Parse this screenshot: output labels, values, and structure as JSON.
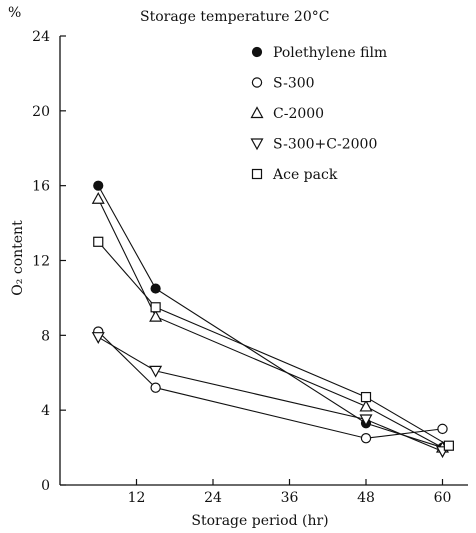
{
  "chart_data": {
    "type": "line",
    "title": "Storage temperature 20°C",
    "xlabel": "Storage period (hr)",
    "ylabel": "O₂ content",
    "y_unit": "%",
    "xlim": [
      0,
      64
    ],
    "ylim": [
      0,
      24
    ],
    "x_ticks": [
      "12",
      "24",
      "36",
      "48",
      "60"
    ],
    "y_ticks": [
      "0",
      "4",
      "8",
      "12",
      "16",
      "20",
      "24"
    ],
    "grid": false,
    "legend_position": "top-right",
    "series": [
      {
        "name": "Polethylene film",
        "marker": "filled-circle",
        "x": [
          6,
          15,
          48,
          60
        ],
        "y": [
          16.0,
          10.5,
          3.3,
          2.0
        ]
      },
      {
        "name": "S-300",
        "marker": "open-circle",
        "x": [
          6,
          15,
          48,
          60
        ],
        "y": [
          8.2,
          5.2,
          2.5,
          3.0
        ]
      },
      {
        "name": "C-2000",
        "marker": "open-triangle-up",
        "x": [
          6,
          15,
          48,
          60
        ],
        "y": [
          15.3,
          9.0,
          4.2,
          2.0
        ]
      },
      {
        "name": "S-300+C-2000",
        "marker": "open-triangle-down",
        "x": [
          6,
          15,
          48,
          60
        ],
        "y": [
          7.9,
          6.1,
          3.5,
          1.8
        ]
      },
      {
        "name": "Ace pack",
        "marker": "open-square",
        "x": [
          6,
          15,
          48,
          61
        ],
        "y": [
          13.0,
          9.5,
          4.7,
          2.1
        ]
      }
    ]
  }
}
